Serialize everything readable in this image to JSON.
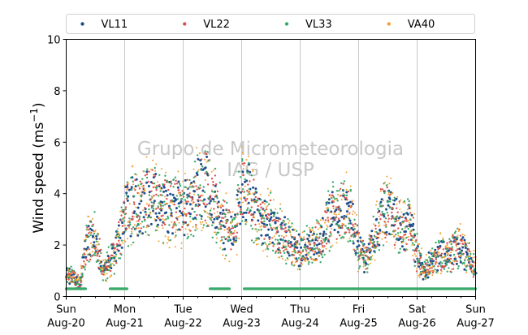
{
  "chart_data": {
    "type": "scatter",
    "title": "",
    "ylabel_main": "Wind speed (ms",
    "ylabel_sup": "−1",
    "ylabel_close": ")",
    "xlabel": "",
    "ylim": [
      0,
      10
    ],
    "yticks": [
      0,
      2,
      4,
      6,
      8,
      10
    ],
    "xlim": [
      "2023-08-20T00:00",
      "2023-08-27T00:00"
    ],
    "xticks": [
      {
        "date": "2023-08-20",
        "line1": "Sun",
        "line2": "Aug-20"
      },
      {
        "date": "2023-08-21",
        "line1": "Mon",
        "line2": "Aug-21"
      },
      {
        "date": "2023-08-22",
        "line1": "Tue",
        "line2": "Aug-22"
      },
      {
        "date": "2023-08-23",
        "line1": "Wed",
        "line2": "Aug-23"
      },
      {
        "date": "2023-08-24",
        "line1": "Thu",
        "line2": "Aug-24"
      },
      {
        "date": "2023-08-25",
        "line1": "Fri",
        "line2": "Aug-25"
      },
      {
        "date": "2023-08-26",
        "line1": "Sat",
        "line2": "Aug-26"
      },
      {
        "date": "2023-08-27",
        "line1": "Sun",
        "line2": "Aug-27"
      }
    ],
    "grid": "vertical-major",
    "legend_position": "top, outside, 4 columns",
    "watermark": [
      "Grupo de Micrometeorologia",
      "IAG / USP"
    ],
    "series": [
      {
        "name": "VL11",
        "color": "#1f4e8c"
      },
      {
        "name": "VL22",
        "color": "#d9534f"
      },
      {
        "name": "VL33",
        "color": "#3aaa6a"
      },
      {
        "name": "VA40",
        "color": "#f5a030"
      }
    ],
    "profile": [
      [
        "2023-08-20T00:00",
        0.8
      ],
      [
        "2023-08-20T03:00",
        0.7
      ],
      [
        "2023-08-20T06:00",
        0.6
      ],
      [
        "2023-08-20T09:00",
        2.4
      ],
      [
        "2023-08-20T12:00",
        2.2
      ],
      [
        "2023-08-20T15:00",
        1.0
      ],
      [
        "2023-08-20T18:00",
        1.3
      ],
      [
        "2023-08-20T21:00",
        2.0
      ],
      [
        "2023-08-21T00:00",
        3.2
      ],
      [
        "2023-08-21T03:00",
        3.6
      ],
      [
        "2023-08-21T06:00",
        3.4
      ],
      [
        "2023-08-21T09:00",
        3.8
      ],
      [
        "2023-08-21T12:00",
        3.7
      ],
      [
        "2023-08-21T15:00",
        3.6
      ],
      [
        "2023-08-21T18:00",
        3.5
      ],
      [
        "2023-08-21T21:00",
        3.4
      ],
      [
        "2023-08-22T00:00",
        3.4
      ],
      [
        "2023-08-22T03:00",
        3.4
      ],
      [
        "2023-08-22T06:00",
        4.2
      ],
      [
        "2023-08-22T09:00",
        4.4
      ],
      [
        "2023-08-22T12:00",
        3.7
      ],
      [
        "2023-08-22T15:00",
        3.1
      ],
      [
        "2023-08-22T18:00",
        2.8
      ],
      [
        "2023-08-22T21:00",
        2.5
      ],
      [
        "2023-08-23T00:00",
        4.2
      ],
      [
        "2023-08-23T03:00",
        3.9
      ],
      [
        "2023-08-23T06:00",
        3.3
      ],
      [
        "2023-08-23T09:00",
        2.9
      ],
      [
        "2023-08-23T12:00",
        2.8
      ],
      [
        "2023-08-23T15:00",
        2.5
      ],
      [
        "2023-08-23T18:00",
        2.3
      ],
      [
        "2023-08-23T21:00",
        2.0
      ],
      [
        "2023-08-24T00:00",
        1.8
      ],
      [
        "2023-08-24T03:00",
        2.0
      ],
      [
        "2023-08-24T06:00",
        1.9
      ],
      [
        "2023-08-24T09:00",
        2.4
      ],
      [
        "2023-08-24T12:00",
        3.1
      ],
      [
        "2023-08-24T15:00",
        3.2
      ],
      [
        "2023-08-24T18:00",
        3.4
      ],
      [
        "2023-08-24T21:00",
        3.0
      ],
      [
        "2023-08-25T00:00",
        1.8
      ],
      [
        "2023-08-25T03:00",
        1.6
      ],
      [
        "2023-08-25T06:00",
        2.2
      ],
      [
        "2023-08-25T09:00",
        3.1
      ],
      [
        "2023-08-25T12:00",
        3.3
      ],
      [
        "2023-08-25T15:00",
        2.9
      ],
      [
        "2023-08-25T18:00",
        2.6
      ],
      [
        "2023-08-25T21:00",
        2.9
      ],
      [
        "2023-08-26T00:00",
        1.6
      ],
      [
        "2023-08-26T03:00",
        1.0
      ],
      [
        "2023-08-26T06:00",
        1.3
      ],
      [
        "2023-08-26T09:00",
        1.7
      ],
      [
        "2023-08-26T12:00",
        1.5
      ],
      [
        "2023-08-26T15:00",
        1.8
      ],
      [
        "2023-08-26T18:00",
        2.0
      ],
      [
        "2023-08-26T21:00",
        1.4
      ],
      [
        "2023-08-27T00:00",
        1.2
      ]
    ],
    "floor_segments": [
      {
        "start": "2023-08-20T00:00",
        "end": "2023-08-20T08:00",
        "value": 0.3
      },
      {
        "start": "2023-08-20T18:00",
        "end": "2023-08-21T01:00",
        "value": 0.3
      },
      {
        "start": "2023-08-22T11:00",
        "end": "2023-08-22T19:00",
        "value": 0.3
      },
      {
        "start": "2023-08-23T01:00",
        "end": "2023-08-27T00:00",
        "value": 0.3
      }
    ]
  }
}
